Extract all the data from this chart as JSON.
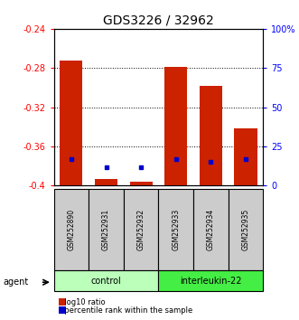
{
  "title": "GDS3226 / 32962",
  "samples": [
    "GSM252890",
    "GSM252931",
    "GSM252932",
    "GSM252933",
    "GSM252934",
    "GSM252935"
  ],
  "log10_ratio": [
    -0.272,
    -0.393,
    -0.396,
    -0.279,
    -0.298,
    -0.342
  ],
  "percentile_rank": [
    17,
    12,
    12,
    17,
    15,
    17
  ],
  "ylim_left": [
    -0.4,
    -0.24
  ],
  "ylim_right": [
    0,
    100
  ],
  "yticks_left": [
    -0.4,
    -0.36,
    -0.32,
    -0.28,
    -0.24
  ],
  "yticks_right": [
    0,
    25,
    50,
    75,
    100
  ],
  "ytick_labels_right": [
    "0",
    "25",
    "50",
    "75",
    "100%"
  ],
  "groups": [
    {
      "label": "control",
      "start": 0,
      "end": 3,
      "color": "#bbffbb"
    },
    {
      "label": "interleukin-22",
      "start": 3,
      "end": 6,
      "color": "#44ee44"
    }
  ],
  "bar_color": "#cc2200",
  "blue_color": "#0000cc",
  "bar_baseline": -0.4,
  "bar_width": 0.65,
  "sample_box_color": "#cccccc",
  "agent_label": "agent"
}
